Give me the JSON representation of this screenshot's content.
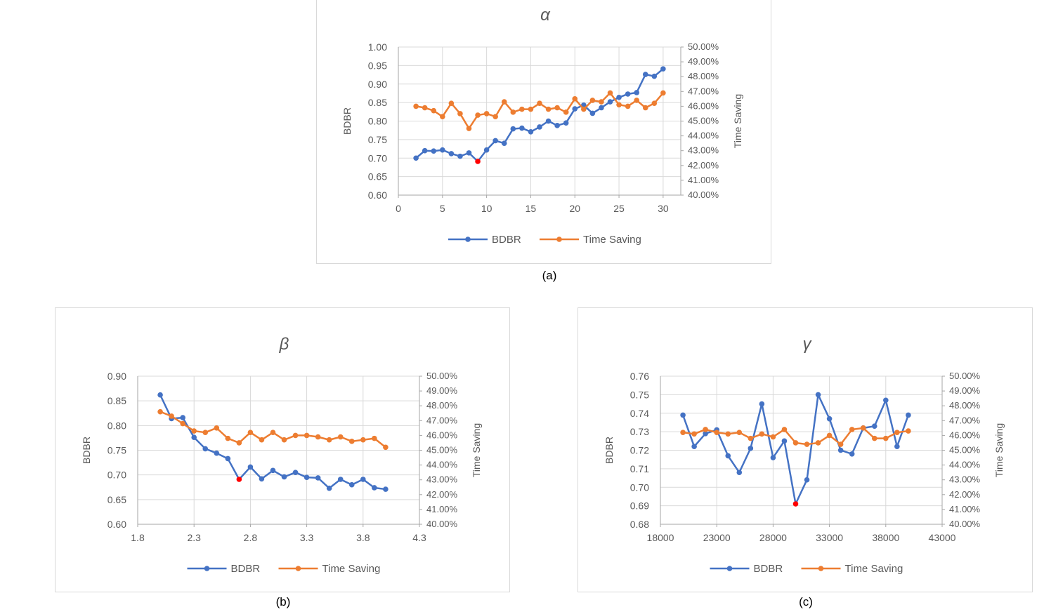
{
  "chart_data": [
    {
      "type": "line",
      "title": "α",
      "caption": "(a)",
      "xlabel": "",
      "ylabel": "BDBR",
      "y2label": "Time Saving",
      "xlim": [
        0,
        32
      ],
      "xticks": [
        0,
        5,
        10,
        15,
        20,
        25,
        30
      ],
      "xtick_labels": [
        "0",
        "5",
        "10",
        "15",
        "20",
        "25",
        "30"
      ],
      "ylim": [
        0.6,
        1.0
      ],
      "yticks": [
        0.6,
        0.65,
        0.7,
        0.75,
        0.8,
        0.85,
        0.9,
        0.95,
        1.0
      ],
      "ytick_labels": [
        "0.60",
        "0.65",
        "0.70",
        "0.75",
        "0.80",
        "0.85",
        "0.90",
        "0.95",
        "1.00"
      ],
      "y2lim": [
        40,
        50
      ],
      "y2ticks": [
        40,
        41,
        42,
        43,
        44,
        45,
        46,
        47,
        48,
        49,
        50
      ],
      "y2tick_labels": [
        "40.00%",
        "41.00%",
        "42.00%",
        "43.00%",
        "44.00%",
        "45.00%",
        "46.00%",
        "47.00%",
        "48.00%",
        "49.00%",
        "50.00%"
      ],
      "grid": true,
      "legend": "bottom",
      "series": [
        {
          "name": "BDBR",
          "axis": "left",
          "color": "#4472c4",
          "x": [
            2,
            3,
            4,
            5,
            6,
            7,
            8,
            9,
            10,
            11,
            12,
            13,
            14,
            15,
            16,
            17,
            18,
            19,
            20,
            21,
            22,
            23,
            24,
            25,
            26,
            27,
            28,
            29,
            30
          ],
          "values": [
            0.7,
            0.72,
            0.719,
            0.722,
            0.712,
            0.705,
            0.714,
            0.691,
            0.722,
            0.747,
            0.74,
            0.779,
            0.781,
            0.771,
            0.784,
            0.8,
            0.788,
            0.795,
            0.833,
            0.843,
            0.821,
            0.836,
            0.852,
            0.864,
            0.873,
            0.877,
            0.926,
            0.921,
            0.941
          ],
          "highlight_index": 7,
          "highlight_color": "#ff0000"
        },
        {
          "name": "Time Saving",
          "axis": "right",
          "color": "#ed7d31",
          "x": [
            2,
            3,
            4,
            5,
            6,
            7,
            8,
            9,
            10,
            11,
            12,
            13,
            14,
            15,
            16,
            17,
            18,
            19,
            20,
            21,
            22,
            23,
            24,
            25,
            26,
            27,
            28,
            29,
            30
          ],
          "values": [
            46.0,
            45.9,
            45.7,
            45.3,
            46.2,
            45.5,
            44.5,
            45.4,
            45.5,
            45.3,
            46.3,
            45.6,
            45.8,
            45.8,
            46.2,
            45.8,
            45.9,
            45.6,
            46.5,
            45.8,
            46.4,
            46.3,
            46.9,
            46.1,
            46.0,
            46.4,
            45.9,
            46.2,
            46.9
          ]
        }
      ]
    },
    {
      "type": "line",
      "title": "β",
      "caption": "(b)",
      "xlabel": "",
      "ylabel": "BDBR",
      "y2label": "Time Saving",
      "xlim": [
        1.8,
        4.3
      ],
      "xticks": [
        1.8,
        2.3,
        2.8,
        3.3,
        3.8,
        4.3
      ],
      "xtick_labels": [
        "1.8",
        "2.3",
        "2.8",
        "3.3",
        "3.8",
        "4.3"
      ],
      "ylim": [
        0.6,
        0.9
      ],
      "yticks": [
        0.6,
        0.65,
        0.7,
        0.75,
        0.8,
        0.85,
        0.9
      ],
      "ytick_labels": [
        "0.60",
        "0.65",
        "0.70",
        "0.75",
        "0.80",
        "0.85",
        "0.90"
      ],
      "y2lim": [
        40,
        50
      ],
      "y2ticks": [
        40,
        41,
        42,
        43,
        44,
        45,
        46,
        47,
        48,
        49,
        50
      ],
      "y2tick_labels": [
        "40.00%",
        "41.00%",
        "42.00%",
        "43.00%",
        "44.00%",
        "45.00%",
        "46.00%",
        "47.00%",
        "48.00%",
        "49.00%",
        "50.00%"
      ],
      "grid": true,
      "legend": "bottom",
      "series": [
        {
          "name": "BDBR",
          "axis": "left",
          "color": "#4472c4",
          "x": [
            2.0,
            2.1,
            2.2,
            2.3,
            2.4,
            2.5,
            2.6,
            2.7,
            2.8,
            2.9,
            3.0,
            3.1,
            3.2,
            3.3,
            3.4,
            3.5,
            3.6,
            3.7,
            3.8,
            3.9,
            4.0
          ],
          "values": [
            0.862,
            0.814,
            0.816,
            0.776,
            0.753,
            0.744,
            0.733,
            0.691,
            0.716,
            0.692,
            0.709,
            0.696,
            0.705,
            0.695,
            0.694,
            0.673,
            0.691,
            0.68,
            0.691,
            0.674,
            0.671
          ],
          "highlight_index": 7,
          "highlight_color": "#ff0000"
        },
        {
          "name": "Time Saving",
          "axis": "right",
          "color": "#ed7d31",
          "x": [
            2.0,
            2.1,
            2.2,
            2.3,
            2.4,
            2.5,
            2.6,
            2.7,
            2.8,
            2.9,
            3.0,
            3.1,
            3.2,
            3.3,
            3.4,
            3.5,
            3.6,
            3.7,
            3.8,
            3.9,
            4.0
          ],
          "values": [
            47.6,
            47.3,
            46.8,
            46.3,
            46.2,
            46.5,
            45.8,
            45.5,
            46.2,
            45.7,
            46.2,
            45.7,
            46.0,
            46.0,
            45.9,
            45.7,
            45.9,
            45.6,
            45.7,
            45.8,
            45.2
          ]
        }
      ]
    },
    {
      "type": "line",
      "title": "γ",
      "caption": "(c)",
      "xlabel": "",
      "ylabel": "BDBR",
      "y2label": "Time Saving",
      "xlim": [
        18000,
        43000
      ],
      "xticks": [
        18000,
        23000,
        28000,
        33000,
        38000,
        43000
      ],
      "xtick_labels": [
        "18000",
        "23000",
        "28000",
        "33000",
        "38000",
        "43000"
      ],
      "ylim": [
        0.68,
        0.76
      ],
      "yticks": [
        0.68,
        0.69,
        0.7,
        0.71,
        0.72,
        0.73,
        0.74,
        0.75,
        0.76
      ],
      "ytick_labels": [
        "0.68",
        "0.69",
        "0.70",
        "0.71",
        "0.72",
        "0.73",
        "0.74",
        "0.75",
        "0.76"
      ],
      "y2lim": [
        40,
        50
      ],
      "y2ticks": [
        40,
        41,
        42,
        43,
        44,
        45,
        46,
        47,
        48,
        49,
        50
      ],
      "y2tick_labels": [
        "40.00%",
        "41.00%",
        "42.00%",
        "43.00%",
        "44.00%",
        "45.00%",
        "46.00%",
        "47.00%",
        "48.00%",
        "49.00%",
        "50.00%"
      ],
      "grid": true,
      "legend": "bottom",
      "series": [
        {
          "name": "BDBR",
          "axis": "left",
          "color": "#4472c4",
          "x": [
            20000,
            21000,
            22000,
            23000,
            24000,
            25000,
            26000,
            27000,
            28000,
            29000,
            30000,
            31000,
            32000,
            33000,
            34000,
            35000,
            36000,
            37000,
            38000,
            39000,
            40000
          ],
          "values": [
            0.739,
            0.722,
            0.729,
            0.731,
            0.717,
            0.708,
            0.721,
            0.745,
            0.716,
            0.725,
            0.691,
            0.704,
            0.75,
            0.737,
            0.72,
            0.718,
            0.732,
            0.733,
            0.747,
            0.722,
            0.739
          ],
          "highlight_index": 10,
          "highlight_color": "#ff0000"
        },
        {
          "name": "Time Saving",
          "axis": "right",
          "color": "#ed7d31",
          "x": [
            20000,
            21000,
            22000,
            23000,
            24000,
            25000,
            26000,
            27000,
            28000,
            29000,
            30000,
            31000,
            32000,
            33000,
            34000,
            35000,
            36000,
            37000,
            38000,
            39000,
            40000
          ],
          "values": [
            46.2,
            46.1,
            46.4,
            46.2,
            46.1,
            46.2,
            45.8,
            46.1,
            45.9,
            46.4,
            45.5,
            45.4,
            45.5,
            46.0,
            45.4,
            46.4,
            46.5,
            45.8,
            45.8,
            46.2,
            46.3
          ]
        }
      ]
    }
  ]
}
